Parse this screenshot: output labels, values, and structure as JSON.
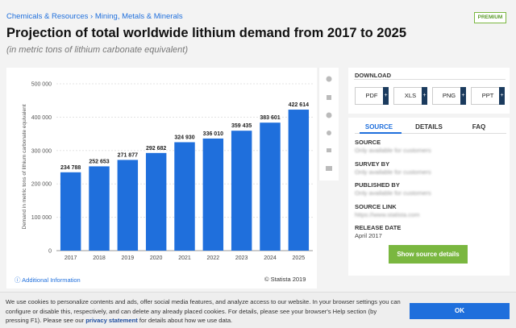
{
  "breadcrumb": [
    "Chemicals & Resources",
    "Mining, Metals & Minerals"
  ],
  "premium": "PREMIUM",
  "title": "Projection of total worldwide lithium demand from 2017 to 2025",
  "subtitle": "(in metric tons of lithium carbonate equivalent)",
  "chart_data": {
    "type": "bar",
    "y_label": "Demand in metric tons of lithium carbonate equivalent",
    "categories": [
      "2017",
      "2018",
      "2019",
      "2020",
      "2021",
      "2022",
      "2023",
      "2024",
      "2025"
    ],
    "values": [
      234788,
      252653,
      271877,
      292682,
      324930,
      336010,
      359435,
      383601,
      422614
    ],
    "value_labels": [
      "234 788",
      "252 653",
      "271 877",
      "292 682",
      "324 930",
      "336 010",
      "359 435",
      "383 601",
      "422 614"
    ],
    "color": "#1f6fdc",
    "ylim": [
      0,
      500000
    ],
    "yticks": [
      0,
      {
        "value": 100000,
        "label": "100 000"
      },
      {
        "value": 200000,
        "label": "200 000"
      },
      {
        "value": 300000,
        "label": "300 000"
      },
      {
        "value": 400000,
        "label": "400 000"
      },
      {
        "value": 500000,
        "label": "500 000"
      }
    ],
    "grid": true
  },
  "chart_footer": {
    "info": "Additional Information",
    "copyright": "© Statista 2019"
  },
  "download": {
    "title": "DOWNLOAD",
    "buttons": [
      "PDF",
      "XLS",
      "PNG",
      "PPT"
    ]
  },
  "tabs": [
    "SOURCE",
    "DETAILS",
    "FAQ"
  ],
  "source_items": [
    {
      "label": "SOURCE",
      "value": "Only available for customers"
    },
    {
      "label": "SURVEY BY",
      "value": "Only available for customers"
    },
    {
      "label": "PUBLISHED BY",
      "value": "Only available for customers"
    },
    {
      "label": "SOURCE LINK",
      "value": "https://www.statista.com"
    },
    {
      "label": "RELEASE DATE",
      "value": "April 2017"
    }
  ],
  "source_button": "Show source details",
  "cookie": {
    "text1": "We use cookies to personalize contents and ads, offer social media features, and analyze access to our website. In your browser settings you can configure or disable this, respectively, and can delete any already placed cookies. For details, please see your browser's Help section (by pressing F1). Please see our",
    "link": "privacy statement",
    "text2": "for details about how we use data.",
    "ok": "OK"
  }
}
